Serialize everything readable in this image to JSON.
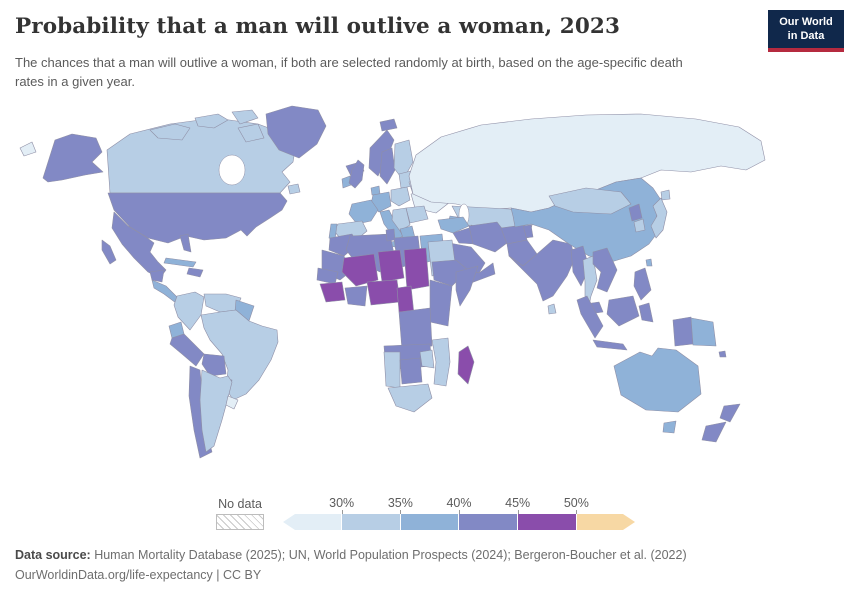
{
  "header": {
    "title": "Probability that a man will outlive a woman, 2023",
    "subtitle": "The chances that a man will outlive a woman, if both are selected randomly at birth, based on the age-specific death rates in a given year.",
    "logo": {
      "line1": "Our World",
      "line2": "in Data",
      "bg_color": "#10284b",
      "accent_color": "#b52a3f"
    }
  },
  "legend": {
    "no_data_label": "No data",
    "tick_labels": [
      "30%",
      "35%",
      "40%",
      "45%",
      "50%"
    ]
  },
  "footer": {
    "source_label": "Data source:",
    "source_text": " Human Mortality Database (2025); UN, World Population Prospects (2024); Bergeron-Boucher et al. (2022)",
    "license_line": "OurWorldinData.org/life-expectancy | CC BY"
  },
  "chart_data": {
    "type": "choropleth",
    "title": "Probability that a man will outlive a woman",
    "year": 2023,
    "unit": "%",
    "legend_position": "bottom",
    "bins": [
      {
        "label": "<30%",
        "color": "#e3eef6"
      },
      {
        "label": "30-35%",
        "color": "#b7cee5"
      },
      {
        "label": "35-40%",
        "color": "#8fb2d8"
      },
      {
        "label": "40-45%",
        "color": "#8289c5"
      },
      {
        "label": "45-50%",
        "color": "#8a4dab"
      },
      {
        "label": ">50%",
        "color": "#f7d8a4"
      }
    ],
    "no_data_color": "hatched",
    "regions": {
      "Russia": "<30%",
      "Ukraine": "<30%",
      "Belarus": "<30%",
      "Uruguay": "<30%",
      "Chukotka": "<30%",
      "Canada": "30-35%",
      "Finland": "30-35%",
      "Baltic states": "30-35%",
      "Poland": "30-35%",
      "Spain": "30-35%",
      "Balkans": "30-35%",
      "Romania and Bulgaria": "30-35%",
      "Kazakhstan": "30-35%",
      "Mongolia": "30-35%",
      "Japan": "30-35%",
      "South Korea": "30-35%",
      "Thailand": "30-35%",
      "Sri Lanka": "30-35%",
      "Colombia": "30-35%",
      "Venezuela": "30-35%",
      "Brazil": "30-35%",
      "Argentina": "30-35%",
      "Sudan": "30-35%",
      "Namibia": "30-35%",
      "Zimbabwe": "30-35%",
      "Mozambique": "30-35%",
      "South Africa": "30-35%",
      "Ireland": "35-40%",
      "France": "35-40%",
      "Germany": "35-40%",
      "Denmark": "35-40%",
      "Portugal": "35-40%",
      "Italy": "35-40%",
      "Greece": "35-40%",
      "Turkey": "35-40%",
      "Caucasus": "35-40%",
      "Uzbekistan and Turkmenistan": "35-40%",
      "China": "35-40%",
      "Taiwan": "35-40%",
      "Egypt": "35-40%",
      "Ecuador": "35-40%",
      "Guianas": "35-40%",
      "Paraguay": "35-40%",
      "Central America": "35-40%",
      "Cuba": "35-40%",
      "Australia": "35-40%",
      "Papua New Guinea": "35-40%",
      "United States": "40-45%",
      "Greenland": "40-45%",
      "Iceland": "40-45%",
      "Svalbard": "40-45%",
      "Mexico": "40-45%",
      "Hispaniola": "40-45%",
      "Peru": "40-45%",
      "Bolivia": "40-45%",
      "Chile": "40-45%",
      "United Kingdom": "40-45%",
      "Norway": "40-45%",
      "Sweden": "40-45%",
      "Morocco": "40-45%",
      "Mauritania": "40-45%",
      "Algeria": "40-45%",
      "Tunisia": "40-45%",
      "Libya": "40-45%",
      "Senegal": "40-45%",
      "Ghana and Ivory Coast": "40-45%",
      "Ethiopia": "40-45%",
      "Somalia": "40-45%",
      "Kenya and Tanzania": "40-45%",
      "DR Congo": "40-45%",
      "Angola and Zambia": "40-45%",
      "Botswana": "40-45%",
      "Iraq and Syria": "40-45%",
      "Iran": "40-45%",
      "Saudi Arabia": "40-45%",
      "Yemen and Oman": "40-45%",
      "Afghanistan": "40-45%",
      "Pakistan": "40-45%",
      "India": "40-45%",
      "Kyrgyzstan and Tajikistan": "40-45%",
      "North Korea": "40-45%",
      "Myanmar": "40-45%",
      "Vietnam Laos and Cambodia": "40-45%",
      "Malaysia": "40-45%",
      "Indonesia": "40-45%",
      "Philippines": "40-45%",
      "New Zealand": "40-45%",
      "Fiji": "40-45%",
      "Mali": "45-50%",
      "Niger": "45-50%",
      "Chad": "45-50%",
      "Guinea": "45-50%",
      "Nigeria": "45-50%",
      "Cameroon": "45-50%",
      "Madagascar": "45-50%"
    }
  }
}
